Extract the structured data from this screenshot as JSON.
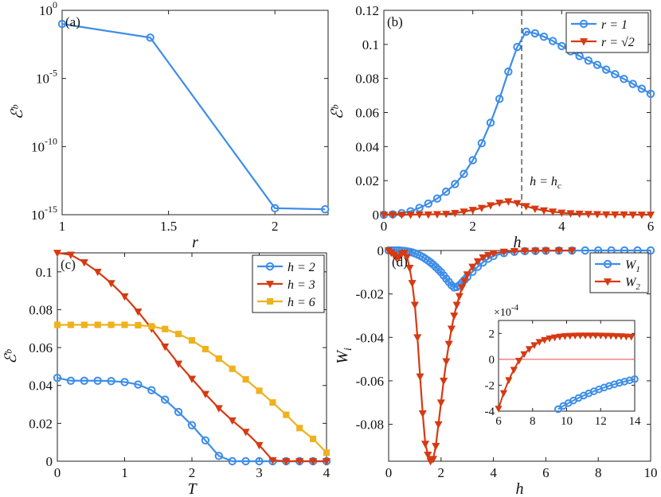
{
  "chart_data": [
    {
      "panel": "a",
      "type": "line",
      "panel_label": "(a)",
      "xlabel": "r",
      "ylabel": "ℰᵇ",
      "yscale": "log",
      "xlim": [
        1,
        2.25
      ],
      "ylim": [
        1e-15,
        1
      ],
      "xticks": [
        1,
        1.5,
        2
      ],
      "xtick_labels": [
        "1",
        "1.5",
        "2"
      ],
      "yticks": [
        1e-15,
        1e-10,
        1e-05,
        1
      ],
      "ytick_labels": [
        {
          "base": "10",
          "exp": "-15"
        },
        {
          "base": "10",
          "exp": "-10"
        },
        {
          "base": "10",
          "exp": "-5"
        },
        {
          "base": "10",
          "exp": "0"
        }
      ],
      "series": [
        {
          "name": "ℰᵇ",
          "color": "#3d8de8",
          "marker": "circle",
          "x": [
            1,
            1.414,
            2,
            2.236
          ],
          "y": [
            0.1,
            0.01,
            3e-15,
            2.5e-15
          ]
        }
      ]
    },
    {
      "panel": "b",
      "type": "line",
      "panel_label": "(b)",
      "xlabel": "h",
      "ylabel": "ℰᵇ",
      "xlim": [
        0,
        6
      ],
      "ylim": [
        0,
        0.12
      ],
      "xticks": [
        0,
        2,
        4,
        6
      ],
      "xtick_labels": [
        "0",
        "2",
        "4",
        "6"
      ],
      "yticks": [
        0,
        0.02,
        0.04,
        0.06,
        0.08,
        0.1,
        0.12
      ],
      "ytick_labels": [
        "0",
        "0.02",
        "0.04",
        "0.06",
        "0.08",
        "0.1",
        "0.12"
      ],
      "vline": {
        "x": 3.1,
        "label": "h = h",
        "label_sub": "c"
      },
      "legend": {
        "position": "top-right",
        "entries": [
          {
            "label": "r = 1",
            "series": 0
          },
          {
            "label": "r = √2",
            "series": 1
          }
        ]
      },
      "series": [
        {
          "name": "r = 1",
          "color": "#3d8de8",
          "marker": "circle",
          "x": [
            0,
            0.2,
            0.4,
            0.6,
            0.8,
            1.0,
            1.2,
            1.4,
            1.6,
            1.8,
            2.0,
            2.2,
            2.4,
            2.6,
            2.8,
            3.0,
            3.2,
            3.4,
            3.6,
            3.8,
            4.0,
            4.2,
            4.4,
            4.6,
            4.8,
            5.0,
            5.2,
            5.4,
            5.6,
            5.8,
            6.0
          ],
          "y": [
            0,
            0.0002,
            0.0009,
            0.002,
            0.004,
            0.0065,
            0.0095,
            0.0135,
            0.018,
            0.024,
            0.032,
            0.042,
            0.054,
            0.068,
            0.084,
            0.0985,
            0.1075,
            0.1065,
            0.1045,
            0.102,
            0.099,
            0.096,
            0.0932,
            0.0905,
            0.088,
            0.0852,
            0.0825,
            0.0797,
            0.0768,
            0.074,
            0.071
          ]
        },
        {
          "name": "r = √2",
          "color": "#d63a12",
          "marker": "triangle-down",
          "x": [
            0,
            0.2,
            0.4,
            0.6,
            0.8,
            1.0,
            1.2,
            1.4,
            1.6,
            1.8,
            2.0,
            2.2,
            2.4,
            2.6,
            2.8,
            3.0,
            3.2,
            3.4,
            3.6,
            3.8,
            4.0,
            4.2,
            4.4,
            4.6,
            4.8,
            5.0,
            5.2,
            5.4,
            5.6,
            5.8,
            6.0
          ],
          "y": [
            0,
            0,
            0,
            0,
            0.0001,
            0.0001,
            0.0003,
            0.0005,
            0.001,
            0.0018,
            0.0028,
            0.004,
            0.0055,
            0.007,
            0.0078,
            0.0068,
            0.005,
            0.0035,
            0.0025,
            0.0018,
            0.0012,
            0.0008,
            0.0006,
            0.0004,
            0.0003,
            0.0002,
            0.0001,
            0.0001,
            0,
            0,
            0
          ]
        }
      ]
    },
    {
      "panel": "c",
      "type": "line",
      "panel_label": "(c)",
      "xlabel": "T",
      "ylabel": "ℰᵇ",
      "xlim": [
        0,
        4
      ],
      "ylim": [
        0,
        0.11
      ],
      "xticks": [
        0,
        1,
        2,
        3,
        4
      ],
      "xtick_labels": [
        "0",
        "1",
        "2",
        "3",
        "4"
      ],
      "yticks": [
        0,
        0.02,
        0.04,
        0.06,
        0.08,
        0.1
      ],
      "ytick_labels": [
        "0",
        "0.02",
        "0.04",
        "0.06",
        "0.08",
        "0.1"
      ],
      "legend": {
        "position": "top-right",
        "entries": [
          {
            "label": "h = 2",
            "series": 0
          },
          {
            "label": "h = 3",
            "series": 1
          },
          {
            "label": "h = 6",
            "series": 2
          }
        ]
      },
      "series": [
        {
          "name": "h = 2",
          "color": "#3d8de8",
          "marker": "circle",
          "x": [
            0,
            0.2,
            0.4,
            0.6,
            0.8,
            1.0,
            1.2,
            1.4,
            1.6,
            1.8,
            2.0,
            2.2,
            2.4,
            2.6,
            2.8,
            3.0,
            3.2,
            3.4,
            3.6,
            3.8,
            4.0
          ],
          "y": [
            0.044,
            0.0425,
            0.0425,
            0.0425,
            0.0423,
            0.0418,
            0.0405,
            0.0375,
            0.0325,
            0.026,
            0.019,
            0.011,
            0.0028,
            0,
            0,
            0,
            0,
            0,
            0,
            0,
            0
          ]
        },
        {
          "name": "h = 3",
          "color": "#d63a12",
          "marker": "triangle-down",
          "x": [
            0,
            0.2,
            0.4,
            0.6,
            0.8,
            1.0,
            1.2,
            1.4,
            1.6,
            1.8,
            2.0,
            2.2,
            2.4,
            2.6,
            2.8,
            3.0,
            3.2,
            3.4,
            3.6,
            3.8,
            4.0
          ],
          "y": [
            0.11,
            0.109,
            0.105,
            0.1,
            0.094,
            0.087,
            0.079,
            0.07,
            0.0605,
            0.0515,
            0.0435,
            0.0355,
            0.028,
            0.0215,
            0.0155,
            0.0085,
            0.0005,
            0,
            0,
            0,
            0
          ]
        },
        {
          "name": "h = 6",
          "color": "#efb21e",
          "marker": "square",
          "x": [
            0,
            0.2,
            0.4,
            0.6,
            0.8,
            1.0,
            1.2,
            1.4,
            1.6,
            1.8,
            2.0,
            2.2,
            2.4,
            2.6,
            2.8,
            3.0,
            3.2,
            3.4,
            3.6,
            3.8,
            4.0
          ],
          "y": [
            0.072,
            0.072,
            0.072,
            0.072,
            0.072,
            0.072,
            0.0718,
            0.0712,
            0.0698,
            0.0672,
            0.0638,
            0.0592,
            0.0542,
            0.0488,
            0.0432,
            0.0372,
            0.031,
            0.0245,
            0.0175,
            0.0118,
            0.0045
          ]
        }
      ]
    },
    {
      "panel": "d",
      "type": "line",
      "panel_label": "(d)",
      "xlabel": "h",
      "ylabel": "W",
      "ylabel_sub": "i",
      "xlim": [
        0,
        10
      ],
      "ylim": [
        -0.097,
        0
      ],
      "xticks": [
        0,
        2,
        4,
        6,
        8,
        10
      ],
      "xtick_labels": [
        "0",
        "2",
        "4",
        "6",
        "8",
        "10"
      ],
      "yticks": [
        -0.08,
        -0.06,
        -0.04,
        -0.02,
        0
      ],
      "ytick_labels": [
        "-0.08",
        "-0.06",
        "-0.04",
        "-0.02",
        "0"
      ],
      "legend": {
        "position": "top-right",
        "entries": [
          {
            "label": "W",
            "sub": "1",
            "series": 0
          },
          {
            "label": "W",
            "sub": "2",
            "series": 1
          }
        ]
      },
      "series": [
        {
          "name": "W1",
          "color": "#3d8de8",
          "marker": "circle",
          "x": [
            0,
            0.1,
            0.2,
            0.3,
            0.4,
            0.5,
            0.6,
            0.7,
            0.8,
            0.9,
            1.0,
            1.1,
            1.2,
            1.3,
            1.4,
            1.5,
            1.6,
            1.7,
            1.8,
            1.9,
            2.0,
            2.1,
            2.2,
            2.3,
            2.4,
            2.5,
            2.6,
            2.7,
            2.8,
            2.9,
            3.0,
            3.2,
            3.4,
            3.6,
            3.8,
            4.0,
            4.4,
            4.8,
            5.2,
            5.6,
            6.0,
            6.5,
            7.0,
            7.5,
            8.0,
            8.5,
            9.0,
            9.5,
            10.0
          ],
          "y": [
            0,
            0,
            0,
            0,
            0,
            -0.0001,
            -0.0002,
            -0.0004,
            -0.0006,
            -0.0009,
            -0.0013,
            -0.0018,
            -0.0024,
            -0.003,
            -0.0038,
            -0.0046,
            -0.0055,
            -0.0065,
            -0.0076,
            -0.0088,
            -0.01,
            -0.0115,
            -0.013,
            -0.0145,
            -0.016,
            -0.017,
            -0.0168,
            -0.016,
            -0.0148,
            -0.0135,
            -0.0122,
            -0.0098,
            -0.0075,
            -0.0055,
            -0.0038,
            -0.0025,
            -0.0012,
            -0.0006,
            -0.0003,
            -0.0002,
            -0.0001,
            -5e-05,
            -2e-05,
            0,
            0,
            0,
            0,
            0,
            0
          ]
        },
        {
          "name": "W2",
          "color": "#d63a12",
          "marker": "triangle-down",
          "x": [
            0,
            0.1,
            0.2,
            0.3,
            0.4,
            0.5,
            0.6,
            0.7,
            0.8,
            0.9,
            1.0,
            1.1,
            1.2,
            1.3,
            1.4,
            1.5,
            1.6,
            1.7,
            1.8,
            1.9,
            2.0,
            2.1,
            2.2,
            2.3,
            2.4,
            2.5,
            2.6,
            2.7,
            2.8,
            2.9,
            3.0,
            3.2,
            3.4,
            3.6,
            3.8,
            4.0,
            4.4,
            4.8,
            5.2,
            5.6,
            6.0,
            6.5,
            7.0
          ],
          "y": [
            0,
            -0.001,
            -0.002,
            -0.0035,
            -0.003,
            -0.0015,
            -0.001,
            -0.003,
            -0.008,
            -0.015,
            -0.025,
            -0.04,
            -0.058,
            -0.075,
            -0.089,
            -0.094,
            -0.097,
            -0.096,
            -0.09,
            -0.08,
            -0.07,
            -0.06,
            -0.051,
            -0.043,
            -0.036,
            -0.03,
            -0.025,
            -0.021,
            -0.017,
            -0.014,
            -0.011,
            -0.0075,
            -0.005,
            -0.0032,
            -0.0021,
            -0.0013,
            -0.0006,
            -0.0003,
            -0.0002,
            -0.0001,
            -5e-05,
            0,
            0
          ]
        }
      ],
      "inset": {
        "exponent_label": "×10",
        "exponent_sup": "-4",
        "xlim": [
          6,
          14
        ],
        "ylim": [
          -4,
          3
        ],
        "xticks": [
          6,
          8,
          10,
          12,
          14
        ],
        "xtick_labels": [
          "6",
          "8",
          "10",
          "12",
          "14"
        ],
        "yticks": [
          -4,
          -2,
          0,
          2
        ],
        "ytick_labels": [
          "-4",
          "-2",
          "0",
          "2"
        ],
        "hline": {
          "y": 0,
          "color": "#f06a6a"
        },
        "series": [
          {
            "name": "W1",
            "color": "#3d8de8",
            "marker": "circle",
            "x": [
              9.5,
              9.8,
              10.1,
              10.4,
              10.7,
              11.0,
              11.3,
              11.6,
              11.9,
              12.2,
              12.5,
              12.8,
              13.1,
              13.4,
              13.7,
              14.0
            ],
            "y": [
              -3.85,
              -3.6,
              -3.38,
              -3.18,
              -2.98,
              -2.8,
              -2.63,
              -2.47,
              -2.32,
              -2.18,
              -2.05,
              -1.93,
              -1.82,
              -1.72,
              -1.62,
              -1.53
            ]
          },
          {
            "name": "W2",
            "color": "#d63a12",
            "marker": "triangle-down",
            "x": [
              6.0,
              6.3,
              6.6,
              6.9,
              7.2,
              7.5,
              7.8,
              8.1,
              8.4,
              8.7,
              9.0,
              9.3,
              9.6,
              9.9,
              10.2,
              10.5,
              10.8,
              11.1,
              11.4,
              11.7,
              12.0,
              12.3,
              12.6,
              12.9,
              13.2,
              13.5,
              13.8
            ],
            "y": [
              -3.8,
              -2.6,
              -1.6,
              -0.8,
              -0.1,
              0.4,
              0.8,
              1.1,
              1.35,
              1.5,
              1.62,
              1.7,
              1.76,
              1.8,
              1.82,
              1.84,
              1.85,
              1.85,
              1.85,
              1.85,
              1.84,
              1.83,
              1.82,
              1.8,
              1.79,
              1.77,
              1.75
            ]
          }
        ]
      }
    }
  ]
}
